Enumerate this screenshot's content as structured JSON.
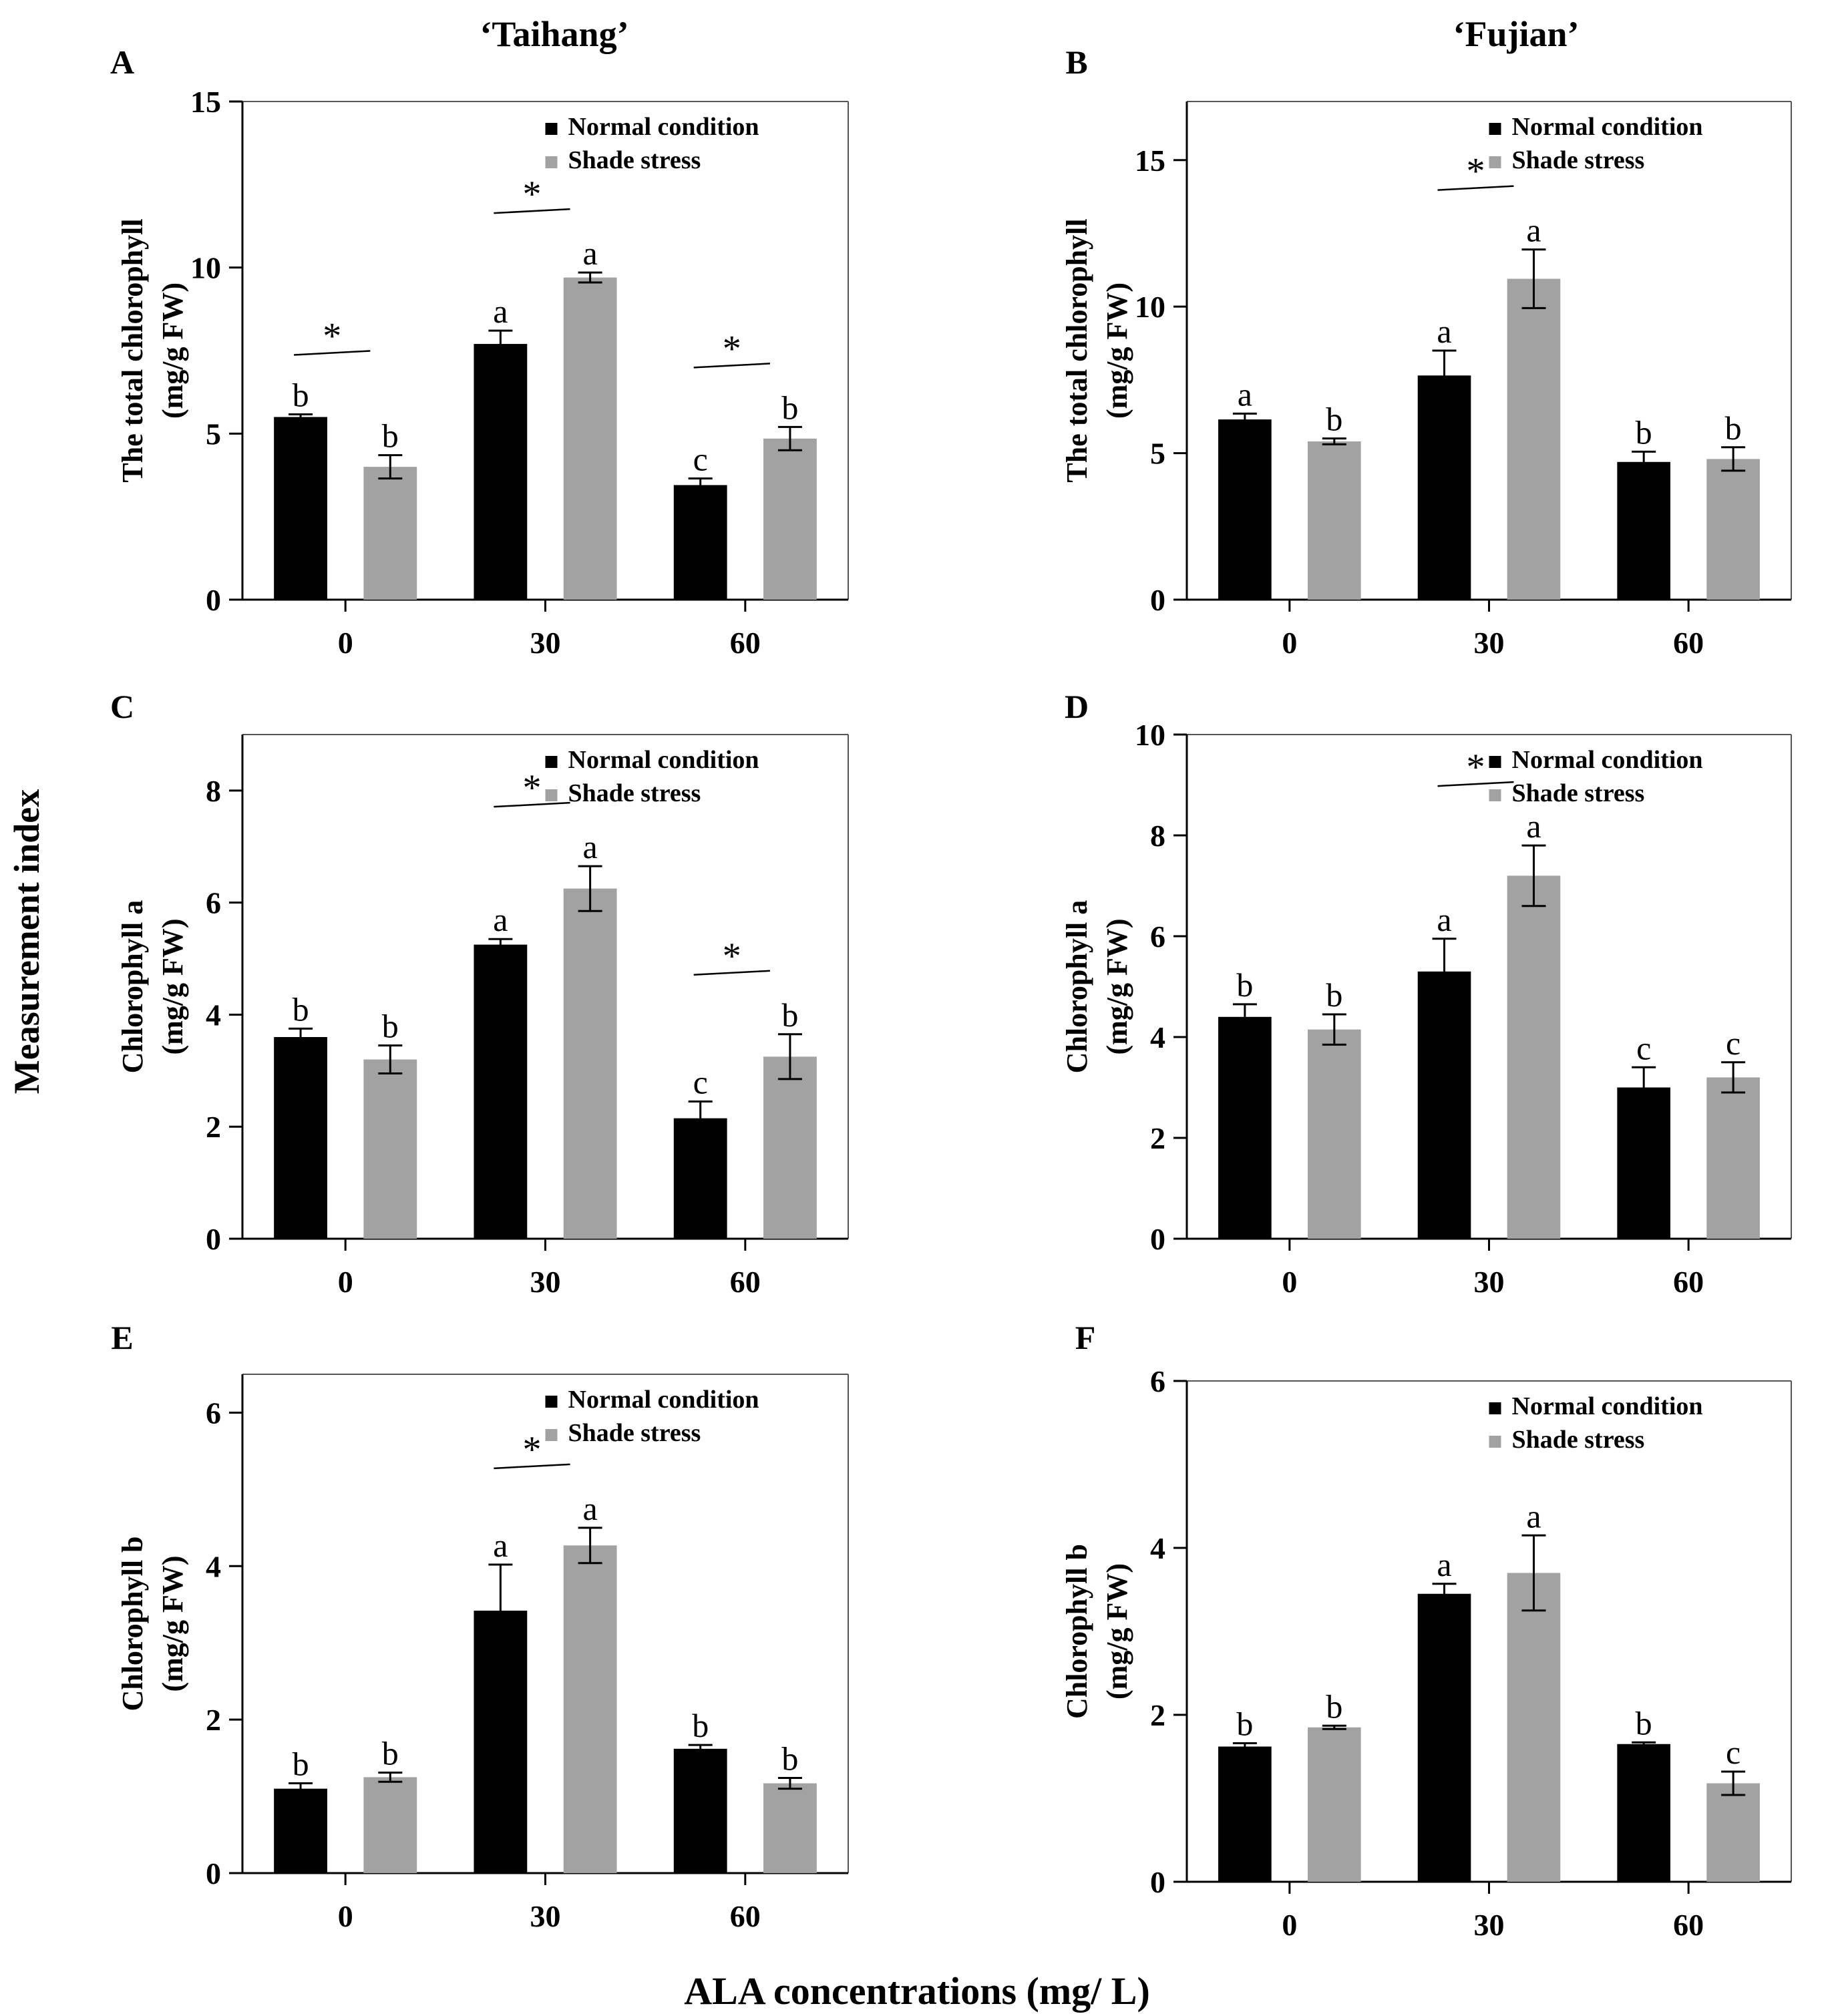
{
  "column_titles": [
    "‘Taihang’",
    "‘Fujian’"
  ],
  "global_ylabel": "Measurement index",
  "global_xlabel": "ALA concentrations (mg/ L)",
  "colors": {
    "normal": "#000000",
    "shade": "#a2a2a2"
  },
  "chart_data": [
    {
      "panel": "A",
      "type": "bar",
      "ylabel": [
        "The total chlorophyll",
        "(mg/g FW)"
      ],
      "categories": [
        "0",
        "30",
        "60"
      ],
      "ylim": [
        0,
        15
      ],
      "yticks": [
        0,
        5,
        10,
        15
      ],
      "legend": [
        "Normal condition",
        "Shade stress"
      ],
      "legend_position": "top-right",
      "series": [
        {
          "name": "Normal condition",
          "values": [
            5.5,
            7.7,
            3.45
          ],
          "errors": [
            0.08,
            0.4,
            0.2
          ],
          "letters": [
            "b",
            "a",
            "c"
          ]
        },
        {
          "name": "Shade stress",
          "values": [
            4.0,
            9.7,
            4.85
          ],
          "errors": [
            0.35,
            0.15,
            0.35
          ],
          "letters": [
            "b",
            "a",
            "b"
          ]
        }
      ],
      "significance": [
        "*",
        "*",
        "*"
      ]
    },
    {
      "panel": "B",
      "type": "bar",
      "ylabel": [
        "The total chlorophyll",
        "(mg/g FW)"
      ],
      "categories": [
        "0",
        "30",
        "60"
      ],
      "ylim": [
        0,
        17
      ],
      "yticks": [
        0,
        5,
        10,
        15
      ],
      "legend": [
        "Normal condition",
        "Shade stress"
      ],
      "legend_position": "top-right",
      "series": [
        {
          "name": "Normal condition",
          "values": [
            6.15,
            7.65,
            4.7
          ],
          "errors": [
            0.2,
            0.85,
            0.35
          ],
          "letters": [
            "a",
            "a",
            "b"
          ]
        },
        {
          "name": "Shade stress",
          "values": [
            5.4,
            10.95,
            4.8
          ],
          "errors": [
            0.1,
            1.0,
            0.4
          ],
          "letters": [
            "b",
            "a",
            "b"
          ]
        }
      ],
      "significance": [
        "",
        "*",
        ""
      ]
    },
    {
      "panel": "C",
      "type": "bar",
      "ylabel": [
        "Chlorophyll a",
        "(mg/g FW)"
      ],
      "categories": [
        "0",
        "30",
        "60"
      ],
      "ylim": [
        0,
        9
      ],
      "yticks": [
        0,
        2,
        4,
        6,
        8
      ],
      "legend": [
        "Normal condition",
        "Shade stress"
      ],
      "legend_position": "top-right",
      "series": [
        {
          "name": "Normal condition",
          "values": [
            3.6,
            5.25,
            2.15
          ],
          "errors": [
            0.15,
            0.1,
            0.3
          ],
          "letters": [
            "b",
            "a",
            "c"
          ]
        },
        {
          "name": "Shade stress",
          "values": [
            3.2,
            6.25,
            3.25
          ],
          "errors": [
            0.25,
            0.4,
            0.4
          ],
          "letters": [
            "b",
            "a",
            "b"
          ]
        }
      ],
      "significance": [
        "",
        "*",
        "*"
      ]
    },
    {
      "panel": "D",
      "type": "bar",
      "ylabel": [
        "Chlorophyll a",
        "(mg/g FW)"
      ],
      "categories": [
        "0",
        "30",
        "60"
      ],
      "ylim": [
        0,
        10
      ],
      "yticks": [
        0,
        2,
        4,
        6,
        8,
        10
      ],
      "legend": [
        "Normal condition",
        "Shade stress"
      ],
      "legend_position": "top-right",
      "series": [
        {
          "name": "Normal condition",
          "values": [
            4.4,
            5.3,
            3.0
          ],
          "errors": [
            0.25,
            0.65,
            0.4
          ],
          "letters": [
            "b",
            "a",
            "c"
          ]
        },
        {
          "name": "Shade stress",
          "values": [
            4.15,
            7.2,
            3.2
          ],
          "errors": [
            0.3,
            0.6,
            0.3
          ],
          "letters": [
            "b",
            "a",
            "c"
          ]
        }
      ],
      "significance": [
        "",
        "*",
        ""
      ]
    },
    {
      "panel": "E",
      "type": "bar",
      "ylabel": [
        "Chlorophyll b",
        "(mg/g FW)"
      ],
      "categories": [
        "0",
        "30",
        "60"
      ],
      "ylim": [
        0,
        6.5
      ],
      "yticks": [
        0,
        2,
        4,
        6
      ],
      "legend": [
        "Normal condition",
        "Shade stress"
      ],
      "legend_position": "top-right",
      "series": [
        {
          "name": "Normal condition",
          "values": [
            1.1,
            3.42,
            1.62
          ],
          "errors": [
            0.07,
            0.6,
            0.05
          ],
          "letters": [
            "b",
            "a",
            "b"
          ]
        },
        {
          "name": "Shade stress",
          "values": [
            1.25,
            4.27,
            1.17
          ],
          "errors": [
            0.06,
            0.23,
            0.07
          ],
          "letters": [
            "b",
            "a",
            "b"
          ]
        }
      ],
      "significance": [
        "",
        "*",
        ""
      ]
    },
    {
      "panel": "F",
      "type": "bar",
      "ylabel": [
        "Chlorophyll b",
        "(mg/g FW)"
      ],
      "categories": [
        "0",
        "30",
        "60"
      ],
      "ylim": [
        0,
        6
      ],
      "yticks": [
        0,
        2,
        4,
        6
      ],
      "legend": [
        "Normal condition",
        "Shade stress"
      ],
      "legend_position": "top-right",
      "series": [
        {
          "name": "Normal condition",
          "values": [
            1.62,
            3.45,
            1.65
          ],
          "errors": [
            0.04,
            0.12,
            0.02
          ],
          "letters": [
            "b",
            "a",
            "b"
          ]
        },
        {
          "name": "Shade stress",
          "values": [
            1.85,
            3.7,
            1.18
          ],
          "errors": [
            0.02,
            0.45,
            0.14
          ],
          "letters": [
            "b",
            "a",
            "c"
          ]
        }
      ],
      "significance": [
        "",
        "",
        ""
      ]
    }
  ]
}
